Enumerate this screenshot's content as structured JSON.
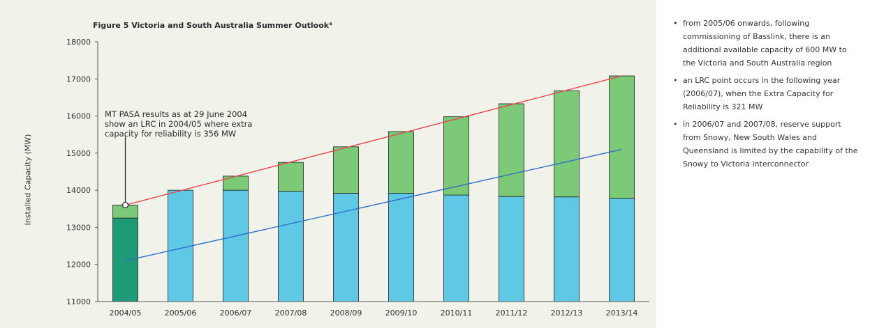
{
  "chart_data": {
    "type": "bar",
    "title": "Figure 5 Victoria and South Australia Summer Outlook⁴",
    "ylabel": "Installed Capacity (MW)",
    "xlabel": "",
    "ylim": [
      11000,
      18000
    ],
    "yticks": [
      11000,
      12000,
      13000,
      14000,
      15000,
      16000,
      17000,
      18000
    ],
    "categories": [
      "2004/05",
      "2005/06",
      "2006/07",
      "2007/08",
      "2008/09",
      "2009/10",
      "2010/11",
      "2011/12",
      "2012/13",
      "2013/14"
    ],
    "stacked_series": [
      {
        "segments": [
          {
            "from": 11000,
            "to": 13250,
            "color": "#1f9a78"
          },
          {
            "from": 13250,
            "to": 13600,
            "color": "#7cc977"
          }
        ]
      },
      {
        "segments": [
          {
            "from": 11000,
            "to": 14000,
            "color": "#5fc8e4"
          }
        ]
      },
      {
        "segments": [
          {
            "from": 11000,
            "to": 14000,
            "color": "#5fc8e4"
          },
          {
            "from": 14000,
            "to": 14380,
            "color": "#7cc977"
          }
        ]
      },
      {
        "segments": [
          {
            "from": 11000,
            "to": 13970,
            "color": "#5fc8e4"
          },
          {
            "from": 13970,
            "to": 14750,
            "color": "#7cc977"
          }
        ]
      },
      {
        "segments": [
          {
            "from": 11000,
            "to": 13920,
            "color": "#5fc8e4"
          },
          {
            "from": 13920,
            "to": 15170,
            "color": "#7cc977"
          }
        ]
      },
      {
        "segments": [
          {
            "from": 11000,
            "to": 13920,
            "color": "#5fc8e4"
          },
          {
            "from": 13920,
            "to": 15580,
            "color": "#7cc977"
          }
        ]
      },
      {
        "segments": [
          {
            "from": 11000,
            "to": 13870,
            "color": "#5fc8e4"
          },
          {
            "from": 13870,
            "to": 15980,
            "color": "#7cc977"
          }
        ]
      },
      {
        "segments": [
          {
            "from": 11000,
            "to": 13830,
            "color": "#5fc8e4"
          },
          {
            "from": 13830,
            "to": 16330,
            "color": "#7cc977"
          }
        ]
      },
      {
        "segments": [
          {
            "from": 11000,
            "to": 13820,
            "color": "#5fc8e4"
          },
          {
            "from": 13820,
            "to": 16680,
            "color": "#7cc977"
          }
        ]
      },
      {
        "segments": [
          {
            "from": 11000,
            "to": 13780,
            "color": "#5fc8e4"
          },
          {
            "from": 13780,
            "to": 17080,
            "color": "#7cc977"
          }
        ]
      }
    ],
    "lines": [
      {
        "color": "#e5484d",
        "x": [
          "2004/05",
          "2013/14"
        ],
        "y": [
          13600,
          17080
        ]
      },
      {
        "color": "#2f6fc9",
        "x": [
          "2004/05",
          "2013/14"
        ],
        "y": [
          12100,
          15100
        ]
      }
    ],
    "marker": {
      "category": "2004/05",
      "value": 13600
    },
    "annotation": {
      "lines": [
        "MT PASA results as at 29 June 2004",
        "show an LRC in 2004/05 where extra",
        "capacity for reliability is 356 MW"
      ]
    },
    "colors": {
      "bg": "#f1f2ea",
      "green_dark": "#1f9a78",
      "green_light": "#7cc977",
      "blue": "#5fc8e4",
      "line_red": "#e5484d",
      "line_blue": "#2f6fc9"
    }
  },
  "notes": [
    "from 2005/06 onwards, following commissioning of Basslink, there is an additional available capacity of 600 MW to the Victoria and South Australia region",
    "an LRC point occurs in the following year (2006/07), when the Extra Capacity for Reliability is 321 MW",
    "in 2006/07 and 2007/08, reserve support from Snowy, New South Wales and Queensland is limited by the capability of the Snowy to Victoria interconnector"
  ]
}
